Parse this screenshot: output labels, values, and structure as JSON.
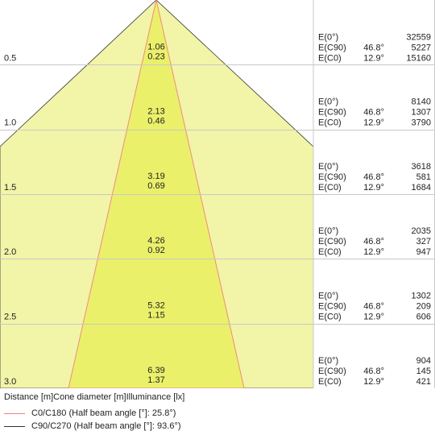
{
  "colors": {
    "wide_cone": "#F2F4A8",
    "narrow_cone": "#EAF06A",
    "c0_line": "#F08080",
    "c90_line": "#333333",
    "grid": "#c8c8c8",
    "text": "#222222"
  },
  "diagram": {
    "rows": [
      {
        "distance": "0.5",
        "cone_c0": "1.06",
        "cone_c90": "0.23",
        "readings": [
          {
            "label": "E(0°)",
            "angle": "",
            "value": "32559"
          },
          {
            "label": "E(C90)",
            "angle": "46.8°",
            "value": "5227"
          },
          {
            "label": "E(C0)",
            "angle": "12.9°",
            "value": "15160"
          }
        ]
      },
      {
        "distance": "1.0",
        "cone_c0": "2.13",
        "cone_c90": "0.46",
        "readings": [
          {
            "label": "E(0°)",
            "angle": "",
            "value": "8140"
          },
          {
            "label": "E(C90)",
            "angle": "46.8°",
            "value": "1307"
          },
          {
            "label": "E(C0)",
            "angle": "12.9°",
            "value": "3790"
          }
        ]
      },
      {
        "distance": "1.5",
        "cone_c0": "3.19",
        "cone_c90": "0.69",
        "readings": [
          {
            "label": "E(0°)",
            "angle": "",
            "value": "3618"
          },
          {
            "label": "E(C90)",
            "angle": "46.8°",
            "value": "581"
          },
          {
            "label": "E(C0)",
            "angle": "12.9°",
            "value": "1684"
          }
        ]
      },
      {
        "distance": "2.0",
        "cone_c0": "4.26",
        "cone_c90": "0.92",
        "readings": [
          {
            "label": "E(0°)",
            "angle": "",
            "value": "2035"
          },
          {
            "label": "E(C90)",
            "angle": "46.8°",
            "value": "327"
          },
          {
            "label": "E(C0)",
            "angle": "12.9°",
            "value": "947"
          }
        ]
      },
      {
        "distance": "2.5",
        "cone_c0": "5.32",
        "cone_c90": "1.15",
        "readings": [
          {
            "label": "E(0°)",
            "angle": "",
            "value": "1302"
          },
          {
            "label": "E(C90)",
            "angle": "46.8°",
            "value": "209"
          },
          {
            "label": "E(C0)",
            "angle": "12.9°",
            "value": "606"
          }
        ]
      },
      {
        "distance": "3.0",
        "cone_c0": "6.39",
        "cone_c90": "1.37",
        "readings": [
          {
            "label": "E(0°)",
            "angle": "",
            "value": "904"
          },
          {
            "label": "E(C90)",
            "angle": "46.8°",
            "value": "145"
          },
          {
            "label": "E(C0)",
            "angle": "12.9°",
            "value": "421"
          }
        ]
      }
    ]
  },
  "footer": {
    "axis_caption": "Distance [m]Cone diameter [m]Illuminance [lx]",
    "legend": [
      {
        "label": "C0/C180 (Half beam angle [°]: 25.8°)"
      },
      {
        "label": "C90/C270 (Half beam angle [°]: 93.6°)"
      }
    ]
  }
}
